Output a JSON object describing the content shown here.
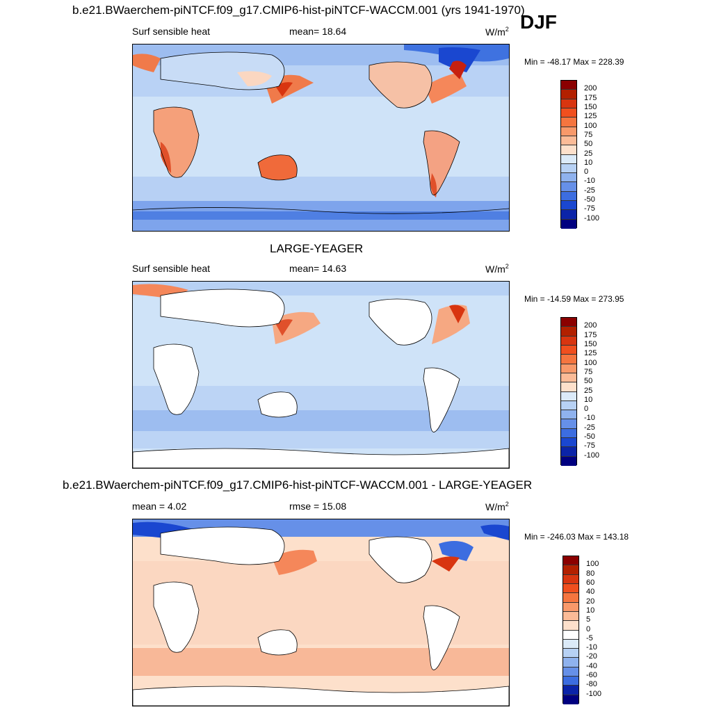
{
  "header": {
    "title": "b.e21.BWaerchem-piNTCF.f09_g17.CMIP6-hist-piNTCF-WACCM.001 (yrs 1941-1970)",
    "season": "DJF"
  },
  "units": {
    "base": "W/m",
    "exp": "2"
  },
  "panels": [
    {
      "title": "",
      "left_label": "Surf sensible heat",
      "mid_label": "mean=  18.64",
      "minmax": "Min = -48.17 Max = 228.39",
      "colorbar": {
        "ticks": [
          "200",
          "175",
          "150",
          "125",
          "100",
          "75",
          "50",
          "25",
          "10",
          "0",
          "-10",
          "-25",
          "-50",
          "-75",
          "-100"
        ],
        "colors": [
          "#8b0000",
          "#b22000",
          "#d83510",
          "#f04f1e",
          "#f5753f",
          "#f8996a",
          "#fbbb97",
          "#fde0cb",
          "#dbeaf8",
          "#b7d1f4",
          "#8fb2ee",
          "#6690e8",
          "#3c6de0",
          "#1a47d0",
          "#0b24a8",
          "#000080"
        ]
      }
    },
    {
      "title": "LARGE-YEAGER",
      "left_label": "Surf sensible heat",
      "mid_label": "mean=  14.63",
      "minmax": "Min = -14.59 Max = 273.95",
      "colorbar": {
        "ticks": [
          "200",
          "175",
          "150",
          "125",
          "100",
          "75",
          "50",
          "25",
          "10",
          "0",
          "-10",
          "-25",
          "-50",
          "-75",
          "-100"
        ],
        "colors": [
          "#8b0000",
          "#b22000",
          "#d83510",
          "#f04f1e",
          "#f5753f",
          "#f8996a",
          "#fbbb97",
          "#fde0cb",
          "#dbeaf8",
          "#b7d1f4",
          "#8fb2ee",
          "#6690e8",
          "#3c6de0",
          "#1a47d0",
          "#0b24a8",
          "#000080"
        ]
      }
    },
    {
      "title": "b.e21.BWaerchem-piNTCF.f09_g17.CMIP6-hist-piNTCF-WACCM.001 - LARGE-YEAGER",
      "left_label": "mean =   4.02",
      "mid_label": "rmse =  15.08",
      "minmax": "Min = -246.03 Max = 143.18",
      "colorbar": {
        "ticks": [
          "100",
          "80",
          "60",
          "40",
          "20",
          "10",
          "5",
          "0",
          "-5",
          "-10",
          "-20",
          "-40",
          "-60",
          "-80",
          "-100"
        ],
        "colors": [
          "#8b0000",
          "#b22000",
          "#d83510",
          "#f04f1e",
          "#f5753f",
          "#f8996a",
          "#fbbb97",
          "#fde0cb",
          "#ffffff",
          "#dbeaf8",
          "#b7d1f4",
          "#8fb2ee",
          "#6690e8",
          "#3c6de0",
          "#0b24a8",
          "#000080"
        ]
      }
    }
  ]
}
